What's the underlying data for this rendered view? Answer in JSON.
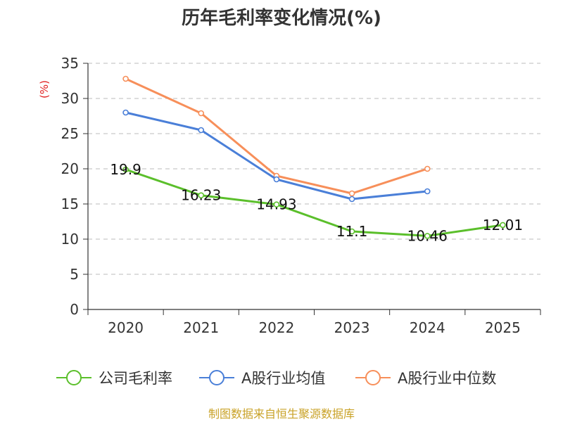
{
  "chart_data": {
    "type": "line",
    "title": "历年毛利率变化情况(%)",
    "ylabel": "(%)",
    "xlabel": "",
    "categories": [
      "2020",
      "2021",
      "2022",
      "2023",
      "2024",
      "2025"
    ],
    "ylim": [
      0,
      35
    ],
    "yticks": [
      0,
      5,
      10,
      15,
      20,
      25,
      30,
      35
    ],
    "grid": true,
    "legend_position": "bottom",
    "series": [
      {
        "name": "公司毛利率",
        "color": "#5bbf2b",
        "values": [
          19.9,
          16.23,
          14.93,
          11.1,
          10.46,
          12.01
        ],
        "labels": [
          "19.9",
          "16.23",
          "14.93",
          "11.1",
          "10.46",
          "12.01"
        ],
        "show_labels": true
      },
      {
        "name": "A股行业均值",
        "color": "#4a7fd8",
        "values": [
          28.0,
          25.5,
          18.5,
          15.7,
          16.8,
          null
        ],
        "show_labels": false
      },
      {
        "name": "A股行业中位数",
        "color": "#f78f5a",
        "values": [
          32.8,
          27.9,
          19.0,
          16.5,
          20.0,
          null
        ],
        "show_labels": false
      }
    ]
  },
  "source_text": "制图数据来自恒生聚源数据库",
  "colors": {
    "axis": "#333333",
    "grid": "#bbbbbb",
    "source": "#c9a227",
    "ylabel": "#e02020"
  }
}
